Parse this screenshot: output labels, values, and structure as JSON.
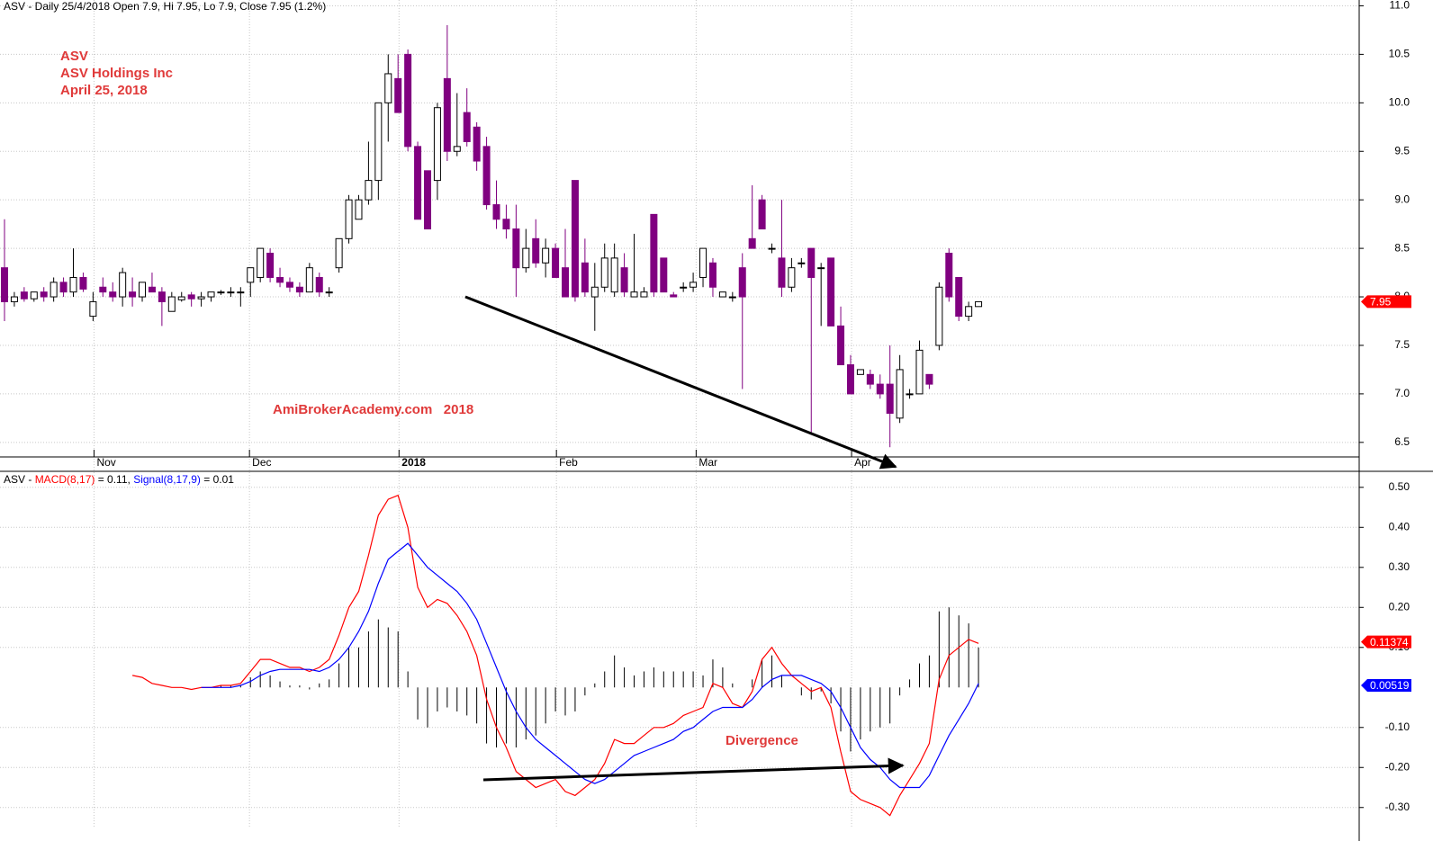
{
  "chart_data": [
    {
      "type": "candlestick",
      "title": "ASV - Daily 25/4/2018 Open 7.9, Hi 7.95, Lo 7.9, Close 7.95 (1.2%)",
      "annotations": [
        "ASV",
        "ASV Holdings Inc",
        "April 25, 2018"
      ],
      "watermark": "AmiBrokerAcademy.com   2018",
      "up_color": "#ffffff",
      "down_color": "#800080",
      "ylim": [
        6.35,
        11.06
      ],
      "yticks": [
        6.5,
        {
          "value": 7,
          "label": "7.0"
        },
        7.5,
        {
          "value": 8,
          "label": "8.0"
        },
        8.5,
        {
          "value": 9,
          "label": "9.0"
        },
        9.5,
        {
          "value": 10,
          "label": "10.0"
        },
        10.5,
        {
          "value": 11,
          "label": "11.0"
        }
      ],
      "xticks": [
        {
          "value": 9.1,
          "label": "Nov"
        },
        {
          "value": 24.9,
          "label": "Dec"
        },
        {
          "value": 40.1,
          "label": "2018"
        },
        {
          "value": 56.1,
          "label": "Feb"
        },
        {
          "value": 70.3,
          "label": "Mar"
        },
        {
          "value": 86.1,
          "label": "Apr"
        }
      ],
      "last_price": 7.95,
      "grid": true,
      "candles": [
        [
          8.3,
          8.8,
          7.75,
          7.95
        ],
        [
          7.95,
          8.05,
          7.9,
          8.0
        ],
        [
          8.05,
          8.1,
          7.95,
          7.98
        ],
        [
          7.98,
          8.05,
          7.95,
          8.05
        ],
        [
          8.05,
          8.1,
          7.95,
          8.0
        ],
        [
          8.0,
          8.2,
          7.95,
          8.15
        ],
        [
          8.15,
          8.2,
          8.0,
          8.05
        ],
        [
          8.05,
          8.5,
          8.0,
          8.2
        ],
        [
          8.2,
          8.25,
          8.05,
          8.08
        ],
        [
          7.8,
          8.05,
          7.75,
          7.95
        ],
        [
          8.1,
          8.2,
          8.0,
          8.05
        ],
        [
          8.05,
          8.15,
          7.95,
          8.0
        ],
        [
          8.0,
          8.3,
          7.9,
          8.25
        ],
        [
          8.05,
          8.2,
          7.9,
          8.0
        ],
        [
          8.0,
          8.15,
          7.95,
          8.15
        ],
        [
          8.1,
          8.25,
          8.05,
          8.05
        ],
        [
          8.05,
          8.1,
          7.7,
          7.95
        ],
        [
          7.85,
          8.05,
          7.85,
          8.0
        ],
        [
          7.97,
          8.05,
          7.95,
          8.0
        ],
        [
          8.02,
          8.05,
          7.9,
          7.98
        ],
        [
          7.98,
          8.05,
          7.9,
          8.0
        ],
        [
          8.0,
          8.05,
          7.95,
          8.05
        ],
        [
          8.05,
          8.07,
          8.02,
          8.05
        ],
        [
          8.05,
          8.1,
          8.0,
          8.05
        ],
        [
          8.05,
          8.1,
          7.9,
          8.05
        ],
        [
          8.15,
          8.3,
          8.0,
          8.3
        ],
        [
          8.2,
          8.5,
          8.15,
          8.5
        ],
        [
          8.45,
          8.5,
          8.15,
          8.2
        ],
        [
          8.2,
          8.3,
          8.1,
          8.15
        ],
        [
          8.15,
          8.2,
          8.05,
          8.1
        ],
        [
          8.1,
          8.15,
          8.0,
          8.05
        ],
        [
          8.05,
          8.35,
          8.05,
          8.3
        ],
        [
          8.2,
          8.25,
          8.0,
          8.05
        ],
        [
          8.05,
          8.1,
          8.0,
          8.05
        ],
        [
          8.3,
          8.6,
          8.25,
          8.6
        ],
        [
          8.6,
          9.05,
          8.55,
          9.0
        ],
        [
          8.8,
          9.05,
          8.8,
          9.0
        ],
        [
          9.0,
          9.6,
          8.95,
          9.2
        ],
        [
          9.2,
          10.0,
          9.0,
          10.0
        ],
        [
          10.0,
          10.5,
          9.6,
          10.3
        ],
        [
          10.25,
          10.5,
          9.9,
          9.9
        ],
        [
          10.5,
          10.55,
          9.5,
          9.55
        ],
        [
          9.55,
          9.6,
          8.8,
          8.8
        ],
        [
          9.3,
          9.3,
          8.7,
          8.7
        ],
        [
          9.2,
          10.0,
          9.0,
          9.95
        ],
        [
          10.25,
          10.8,
          9.4,
          9.5
        ],
        [
          9.5,
          10.1,
          9.45,
          9.55
        ],
        [
          9.9,
          10.15,
          9.55,
          9.6
        ],
        [
          9.75,
          9.8,
          9.3,
          9.4
        ],
        [
          9.55,
          9.65,
          8.9,
          8.95
        ],
        [
          8.95,
          9.2,
          8.7,
          8.8
        ],
        [
          8.8,
          8.95,
          8.6,
          8.7
        ],
        [
          8.7,
          8.95,
          8.0,
          8.3
        ],
        [
          8.3,
          8.7,
          8.25,
          8.5
        ],
        [
          8.6,
          8.8,
          8.3,
          8.35
        ],
        [
          8.35,
          8.6,
          8.2,
          8.5
        ],
        [
          8.5,
          8.55,
          8.2,
          8.2
        ],
        [
          8.3,
          8.7,
          8.0,
          8.0
        ],
        [
          9.2,
          9.2,
          7.95,
          8.0
        ],
        [
          8.35,
          8.6,
          8.0,
          8.05
        ],
        [
          8.0,
          8.35,
          7.65,
          8.1
        ],
        [
          8.1,
          8.55,
          8.05,
          8.4
        ],
        [
          8.05,
          8.55,
          8.0,
          8.4
        ],
        [
          8.3,
          8.45,
          8.0,
          8.05
        ],
        [
          8.0,
          8.65,
          8.0,
          8.05
        ],
        [
          8.0,
          8.1,
          8.0,
          8.05
        ],
        [
          8.85,
          8.85,
          8.0,
          8.05
        ],
        [
          8.4,
          8.4,
          8.05,
          8.05
        ],
        [
          8.02,
          8.05,
          8.0,
          8.0
        ],
        [
          8.1,
          8.15,
          8.05,
          8.1
        ],
        [
          8.1,
          8.25,
          8.05,
          8.15
        ],
        [
          8.2,
          8.5,
          8.1,
          8.5
        ],
        [
          8.35,
          8.4,
          8.0,
          8.1
        ],
        [
          8.0,
          8.05,
          8.0,
          8.05
        ],
        [
          8.0,
          8.05,
          7.95,
          8.0
        ],
        [
          8.3,
          8.45,
          7.05,
          8.0
        ],
        [
          8.6,
          9.15,
          8.5,
          8.5
        ],
        [
          9.0,
          9.05,
          8.7,
          8.7
        ],
        [
          8.5,
          8.55,
          8.45,
          8.5
        ],
        [
          8.4,
          9.0,
          8.0,
          8.1
        ],
        [
          8.1,
          8.4,
          8.05,
          8.3
        ],
        [
          8.35,
          8.4,
          8.3,
          8.35
        ],
        [
          8.5,
          8.5,
          6.6,
          8.2
        ],
        [
          8.3,
          8.35,
          7.7,
          8.3
        ],
        [
          8.4,
          8.4,
          7.7,
          7.7
        ],
        [
          7.7,
          7.9,
          7.3,
          7.3
        ],
        [
          7.3,
          7.4,
          7.0,
          7.0
        ],
        [
          7.2,
          7.25,
          7.2,
          7.25
        ],
        [
          7.2,
          7.25,
          7.05,
          7.1
        ],
        [
          7.1,
          7.2,
          6.95,
          7.0
        ],
        [
          7.1,
          7.5,
          6.45,
          6.8
        ],
        [
          6.75,
          7.4,
          6.7,
          7.25
        ],
        [
          7.0,
          7.05,
          6.95,
          7.0
        ],
        [
          7.0,
          7.55,
          7.0,
          7.45
        ],
        [
          7.2,
          7.2,
          7.05,
          7.1
        ],
        [
          7.5,
          8.15,
          7.45,
          8.1
        ],
        [
          8.45,
          8.5,
          7.95,
          8.0
        ],
        [
          8.2,
          8.2,
          7.75,
          7.8
        ],
        [
          7.8,
          7.95,
          7.75,
          7.9
        ],
        [
          7.9,
          7.95,
          7.9,
          7.95
        ]
      ]
    },
    {
      "type": "macd",
      "prefix": "ASV - ",
      "annotation": "Divergence",
      "ylim": [
        -0.35,
        0.54
      ],
      "yticks": [
        {
          "value": 0.5,
          "label": "0.50"
        },
        {
          "value": 0.4,
          "label": "0.40"
        },
        {
          "value": 0.3,
          "label": "0.30"
        },
        {
          "value": 0.2,
          "label": "0.20"
        },
        {
          "value": 0.1,
          "label": "0.10"
        },
        {
          "value": -0.1,
          "label": "-0.10"
        },
        {
          "value": -0.2,
          "label": "-0.20"
        },
        {
          "value": -0.3,
          "label": "-0.30"
        }
      ],
      "grid": true,
      "histogram_color": "#000000",
      "series": [
        {
          "name": "MACD(8,17)",
          "readout": " = 0.11, ",
          "color": "#ff0000",
          "last": 0.11374,
          "values": [
            null,
            null,
            null,
            null,
            null,
            null,
            null,
            null,
            null,
            null,
            null,
            null,
            null,
            0.03,
            0.025,
            0.01,
            0.005,
            0.0,
            0.0,
            -0.005,
            0.0,
            0.0,
            0.005,
            0.005,
            0.01,
            0.04,
            0.07,
            0.07,
            0.06,
            0.05,
            0.05,
            0.04,
            0.05,
            0.07,
            0.13,
            0.2,
            0.24,
            0.33,
            0.43,
            0.47,
            0.48,
            0.4,
            0.25,
            0.2,
            0.22,
            0.21,
            0.18,
            0.14,
            0.08,
            -0.03,
            -0.1,
            -0.15,
            -0.21,
            -0.23,
            -0.25,
            -0.24,
            -0.23,
            -0.26,
            -0.27,
            -0.25,
            -0.23,
            -0.19,
            -0.13,
            -0.14,
            -0.14,
            -0.12,
            -0.1,
            -0.1,
            -0.09,
            -0.07,
            -0.06,
            -0.05,
            0.01,
            0.0,
            -0.04,
            -0.05,
            -0.01,
            0.07,
            0.1,
            0.06,
            0.03,
            0.01,
            -0.01,
            0.0,
            -0.05,
            -0.16,
            -0.26,
            -0.28,
            -0.29,
            -0.3,
            -0.32,
            -0.27,
            -0.23,
            -0.19,
            -0.14,
            0.02,
            0.08,
            0.1,
            0.12,
            0.11
          ]
        },
        {
          "name": "Signal(8,17,9)",
          "readout": " = 0.01",
          "color": "#0000ff",
          "last": 0.00519,
          "values": [
            null,
            null,
            null,
            null,
            null,
            null,
            null,
            null,
            null,
            null,
            null,
            null,
            null,
            null,
            null,
            null,
            null,
            null,
            null,
            null,
            0.0,
            0.0,
            0.0,
            0.0,
            0.005,
            0.015,
            0.03,
            0.04,
            0.045,
            0.045,
            0.045,
            0.045,
            0.04,
            0.05,
            0.07,
            0.1,
            0.14,
            0.19,
            0.26,
            0.32,
            0.34,
            0.36,
            0.33,
            0.3,
            0.28,
            0.26,
            0.24,
            0.21,
            0.17,
            0.11,
            0.05,
            -0.01,
            -0.06,
            -0.1,
            -0.13,
            -0.15,
            -0.17,
            -0.19,
            -0.21,
            -0.23,
            -0.24,
            -0.23,
            -0.21,
            -0.19,
            -0.17,
            -0.16,
            -0.15,
            -0.14,
            -0.13,
            -0.11,
            -0.1,
            -0.08,
            -0.06,
            -0.05,
            -0.05,
            -0.05,
            -0.03,
            0.0,
            0.02,
            0.03,
            0.03,
            0.03,
            0.02,
            0.01,
            -0.01,
            -0.05,
            -0.1,
            -0.15,
            -0.18,
            -0.2,
            -0.23,
            -0.25,
            -0.25,
            -0.25,
            -0.22,
            -0.17,
            -0.12,
            -0.08,
            -0.04,
            0.01
          ]
        }
      ],
      "histogram": [
        null,
        null,
        null,
        null,
        null,
        null,
        null,
        null,
        null,
        null,
        null,
        null,
        null,
        null,
        null,
        null,
        null,
        null,
        null,
        null,
        0,
        0,
        0.005,
        0.005,
        0.005,
        0.025,
        0.04,
        0.03,
        0.015,
        0.005,
        0.005,
        -0.005,
        0.01,
        0.02,
        0.06,
        0.1,
        0.1,
        0.14,
        0.17,
        0.15,
        0.14,
        0.04,
        -0.08,
        -0.1,
        -0.06,
        -0.05,
        -0.06,
        -0.07,
        -0.09,
        -0.14,
        -0.15,
        -0.14,
        -0.15,
        -0.13,
        -0.12,
        -0.09,
        -0.06,
        -0.07,
        -0.06,
        -0.02,
        0.01,
        0.04,
        0.08,
        0.05,
        0.03,
        0.04,
        0.05,
        0.04,
        0.04,
        0.04,
        0.04,
        0.03,
        0.07,
        0.05,
        0.01,
        0,
        0.02,
        0.07,
        0.08,
        0.03,
        0,
        -0.02,
        -0.03,
        -0.01,
        -0.04,
        -0.11,
        -0.16,
        -0.13,
        -0.11,
        -0.1,
        -0.09,
        -0.02,
        0.02,
        0.06,
        0.08,
        0.19,
        0.2,
        0.18,
        0.16,
        0.1
      ]
    }
  ]
}
